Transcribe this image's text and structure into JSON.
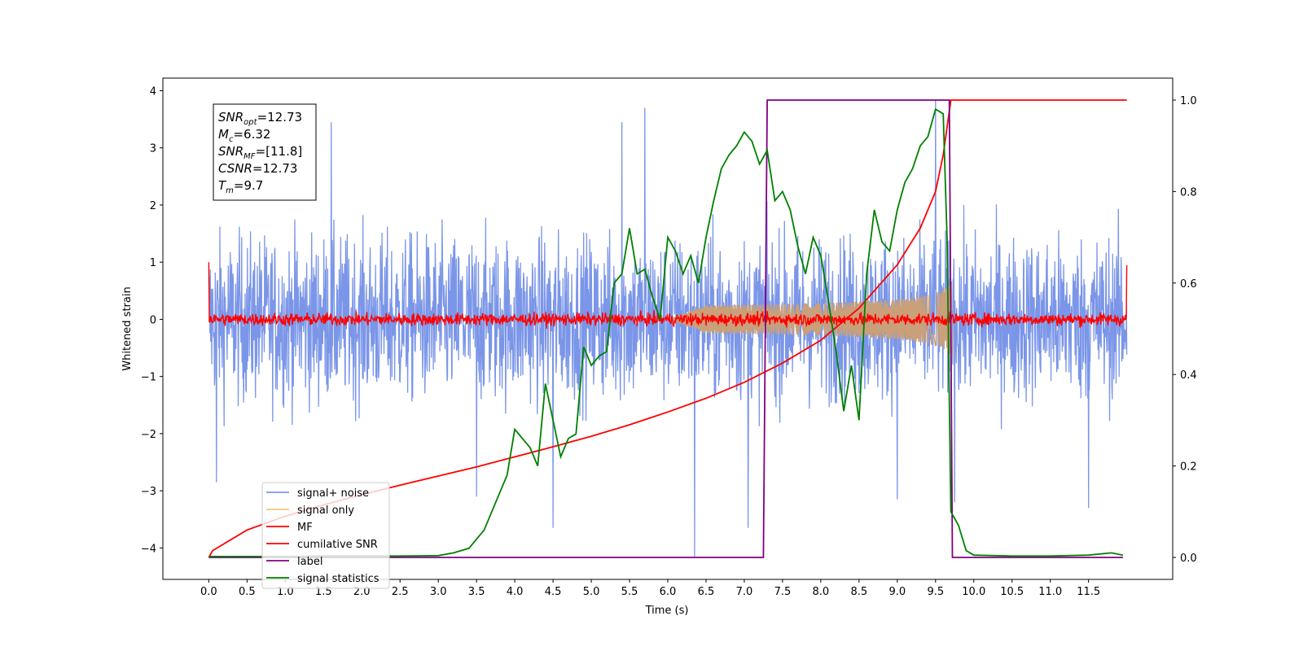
{
  "chart_data": {
    "type": "line",
    "xlabel": "Time (s)",
    "ylabel": "Whitened strain",
    "xlim": [
      -0.6,
      12.6
    ],
    "ylim": [
      -4.55,
      4.22
    ],
    "ylim_right": [
      -0.048,
      1.048
    ],
    "x_ticks": [
      "0.0",
      "0.5",
      "1.0",
      "1.5",
      "2.0",
      "2.5",
      "3.0",
      "3.5",
      "4.0",
      "4.5",
      "5.0",
      "5.5",
      "6.0",
      "6.5",
      "7.0",
      "7.5",
      "8.0",
      "8.5",
      "9.0",
      "9.5",
      "10.0",
      "10.5",
      "11.0",
      "11.5"
    ],
    "x_tick_values": [
      0,
      0.5,
      1,
      1.5,
      2,
      2.5,
      3,
      3.5,
      4,
      4.5,
      5,
      5.5,
      6,
      6.5,
      7,
      7.5,
      8,
      8.5,
      9,
      9.5,
      10,
      10.5,
      11,
      11.5
    ],
    "y_ticks": [
      "−4",
      "−3",
      "−2",
      "−1",
      "0",
      "1",
      "2",
      "3",
      "4"
    ],
    "y_tick_values": [
      -4,
      -3,
      -2,
      -1,
      0,
      1,
      2,
      3,
      4
    ],
    "y2_ticks": [
      "0.0",
      "0.2",
      "0.4",
      "0.6",
      "0.8",
      "1.0"
    ],
    "y2_tick_values": [
      0,
      0.2,
      0.4,
      0.6,
      0.8,
      1.0
    ],
    "legend_position": "lower-left",
    "info_box": {
      "lines": [
        {
          "base": "SNR",
          "sub": "opt",
          "value": "=12.73"
        },
        {
          "base": "M",
          "sub": "c",
          "value": "=6.32"
        },
        {
          "base": "SNR",
          "sub": "MF",
          "value": "=[11.8]"
        },
        {
          "base": "CSNR",
          "sub": "",
          "value": "=12.73"
        },
        {
          "base": "T",
          "sub": "m",
          "value": "=9.7"
        }
      ]
    },
    "series": [
      {
        "name": "signal+ noise",
        "color": "#7b96e8",
        "axis": "left",
        "kind": "noise",
        "t_start": 0.0,
        "t_end": 12.0,
        "envelope_typical": 1.6,
        "peak_extremes": [
          {
            "x": 0.1,
            "y": -2.85
          },
          {
            "x": 1.6,
            "y": 3.45
          },
          {
            "x": 3.5,
            "y": -3.1
          },
          {
            "x": 4.5,
            "y": -3.65
          },
          {
            "x": 5.4,
            "y": 3.45
          },
          {
            "x": 5.7,
            "y": 3.7
          },
          {
            "x": 6.35,
            "y": -4.15
          },
          {
            "x": 7.05,
            "y": -3.65
          },
          {
            "x": 9.0,
            "y": -3.15
          },
          {
            "x": 9.5,
            "y": 3.85
          },
          {
            "x": 9.75,
            "y": -3.2
          },
          {
            "x": 11.5,
            "y": -3.3
          }
        ]
      },
      {
        "name": "signal only",
        "color": "#f5c77a",
        "axis": "left",
        "kind": "chirp",
        "t_start": 6.0,
        "t_end": 9.72,
        "peak_amplitude": 0.7
      },
      {
        "name": "MF",
        "color": "#ff0000",
        "axis": "left",
        "kind": "noise-small",
        "t_start": 0.0,
        "t_end": 12.0,
        "amplitude": 0.1,
        "endpoints": [
          {
            "x": 0.0,
            "y": 1.0
          },
          {
            "x": 12.0,
            "y": 0.95
          }
        ]
      },
      {
        "name": "cumilative SNR",
        "color": "#ff0000",
        "axis": "right",
        "x": [
          0.0,
          0.05,
          0.5,
          1.0,
          1.5,
          2.0,
          2.5,
          3.0,
          3.5,
          4.0,
          4.5,
          5.0,
          5.5,
          6.0,
          6.5,
          7.0,
          7.5,
          8.0,
          8.5,
          9.0,
          9.3,
          9.5,
          9.6,
          9.7,
          12.0
        ],
        "y": [
          0.0,
          0.015,
          0.06,
          0.09,
          0.115,
          0.137,
          0.158,
          0.178,
          0.198,
          0.22,
          0.242,
          0.265,
          0.29,
          0.318,
          0.348,
          0.383,
          0.425,
          0.475,
          0.545,
          0.64,
          0.72,
          0.8,
          0.88,
          1.0,
          1.0
        ]
      },
      {
        "name": "label",
        "color": "#800080",
        "axis": "right",
        "x": [
          0.0,
          7.25,
          7.3,
          9.68,
          9.72,
          11.95
        ],
        "y": [
          0,
          0,
          1,
          1,
          0,
          0
        ]
      },
      {
        "name": "signal statistics",
        "color": "#008000",
        "axis": "right",
        "x": [
          0.0,
          0.5,
          1.0,
          1.5,
          2.0,
          2.5,
          3.0,
          3.2,
          3.4,
          3.6,
          3.7,
          3.8,
          3.9,
          4.0,
          4.2,
          4.3,
          4.4,
          4.5,
          4.6,
          4.7,
          4.8,
          4.9,
          5.0,
          5.1,
          5.2,
          5.3,
          5.4,
          5.5,
          5.6,
          5.7,
          5.8,
          5.9,
          6.0,
          6.1,
          6.2,
          6.3,
          6.4,
          6.5,
          6.6,
          6.7,
          6.8,
          6.9,
          7.0,
          7.1,
          7.2,
          7.3,
          7.4,
          7.5,
          7.6,
          7.7,
          7.8,
          7.9,
          8.0,
          8.1,
          8.2,
          8.3,
          8.4,
          8.5,
          8.6,
          8.7,
          8.8,
          8.9,
          9.0,
          9.1,
          9.2,
          9.3,
          9.4,
          9.5,
          9.6,
          9.65,
          9.7,
          9.8,
          9.9,
          10.0,
          10.5,
          11.0,
          11.5,
          11.8,
          11.95
        ],
        "y": [
          0.002,
          0.002,
          0.002,
          0.003,
          0.003,
          0.003,
          0.004,
          0.01,
          0.02,
          0.06,
          0.1,
          0.14,
          0.18,
          0.28,
          0.24,
          0.2,
          0.38,
          0.3,
          0.22,
          0.26,
          0.27,
          0.46,
          0.42,
          0.44,
          0.45,
          0.6,
          0.62,
          0.72,
          0.62,
          0.63,
          0.57,
          0.52,
          0.7,
          0.67,
          0.62,
          0.66,
          0.6,
          0.7,
          0.78,
          0.85,
          0.88,
          0.9,
          0.93,
          0.91,
          0.86,
          0.89,
          0.78,
          0.8,
          0.76,
          0.68,
          0.62,
          0.7,
          0.66,
          0.56,
          0.45,
          0.32,
          0.42,
          0.3,
          0.62,
          0.76,
          0.69,
          0.67,
          0.76,
          0.82,
          0.85,
          0.9,
          0.92,
          0.98,
          0.97,
          0.7,
          0.1,
          0.07,
          0.015,
          0.005,
          0.003,
          0.003,
          0.005,
          0.01,
          0.005
        ]
      }
    ]
  }
}
